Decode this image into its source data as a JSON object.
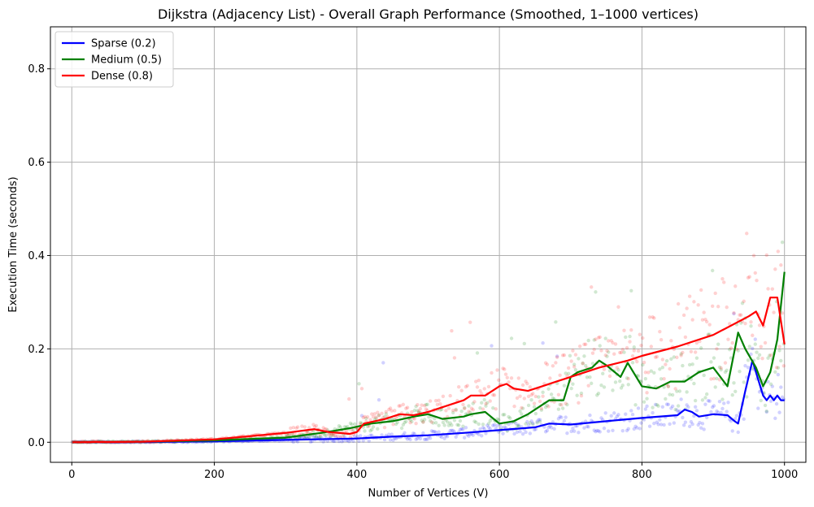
{
  "chart_data": {
    "type": "line",
    "title": "Dijkstra (Adjacency List) - Overall Graph Performance (Smoothed, 1–1000 vertices)",
    "xlabel": "Number of Vertices (V)",
    "ylabel": "Execution Time (seconds)",
    "xlim": [
      -30,
      1030
    ],
    "ylim": [
      -0.043,
      0.89
    ],
    "xticks": [
      0,
      200,
      400,
      600,
      800,
      1000
    ],
    "xtick_labels": [
      "0",
      "200",
      "400",
      "600",
      "800",
      "1000"
    ],
    "yticks": [
      0.0,
      0.2,
      0.4,
      0.6,
      0.8
    ],
    "ytick_labels": [
      "0.0",
      "0.2",
      "0.4",
      "0.6",
      "0.8"
    ],
    "grid": true,
    "legend_position": "top-left",
    "series": [
      {
        "name": "Sparse (0.2)",
        "color": "#0000ff",
        "x": [
          1,
          100,
          200,
          300,
          400,
          450,
          500,
          550,
          600,
          650,
          670,
          700,
          750,
          800,
          850,
          860,
          870,
          880,
          900,
          920,
          930,
          935,
          945,
          955,
          962,
          970,
          975,
          980,
          985,
          990,
          995,
          1000
        ],
        "y": [
          0.0,
          0.0005,
          0.002,
          0.005,
          0.008,
          0.012,
          0.015,
          0.02,
          0.026,
          0.032,
          0.04,
          0.038,
          0.045,
          0.052,
          0.058,
          0.07,
          0.065,
          0.055,
          0.06,
          0.058,
          0.045,
          0.04,
          0.11,
          0.175,
          0.14,
          0.1,
          0.09,
          0.1,
          0.09,
          0.1,
          0.09,
          0.09
        ]
      },
      {
        "name": "Medium (0.5)",
        "color": "#008000",
        "x": [
          1,
          100,
          200,
          300,
          350,
          390,
          420,
          450,
          480,
          500,
          520,
          550,
          560,
          580,
          600,
          620,
          640,
          660,
          670,
          690,
          700,
          710,
          730,
          740,
          750,
          770,
          780,
          800,
          820,
          840,
          860,
          880,
          900,
          920,
          935,
          945,
          960,
          970,
          980,
          990,
          1000
        ],
        "y": [
          0.0,
          0.001,
          0.004,
          0.01,
          0.02,
          0.03,
          0.04,
          0.045,
          0.055,
          0.06,
          0.05,
          0.055,
          0.06,
          0.065,
          0.04,
          0.045,
          0.06,
          0.08,
          0.09,
          0.09,
          0.14,
          0.15,
          0.16,
          0.175,
          0.165,
          0.14,
          0.17,
          0.12,
          0.115,
          0.13,
          0.13,
          0.15,
          0.16,
          0.12,
          0.235,
          0.2,
          0.16,
          0.12,
          0.15,
          0.22,
          0.365
        ]
      },
      {
        "name": "Dense (0.8)",
        "color": "#ff0000",
        "x": [
          1,
          100,
          200,
          300,
          340,
          360,
          390,
          400,
          410,
          440,
          460,
          480,
          500,
          520,
          550,
          560,
          580,
          600,
          610,
          620,
          640,
          660,
          680,
          700,
          740,
          780,
          800,
          850,
          900,
          950,
          960,
          970,
          980,
          990,
          1000
        ],
        "y": [
          0.0,
          0.001,
          0.006,
          0.02,
          0.028,
          0.022,
          0.018,
          0.022,
          0.04,
          0.05,
          0.06,
          0.058,
          0.065,
          0.075,
          0.09,
          0.1,
          0.1,
          0.12,
          0.125,
          0.115,
          0.11,
          0.12,
          0.13,
          0.14,
          0.16,
          0.175,
          0.185,
          0.205,
          0.23,
          0.27,
          0.28,
          0.25,
          0.31,
          0.31,
          0.21
        ]
      }
    ]
  }
}
